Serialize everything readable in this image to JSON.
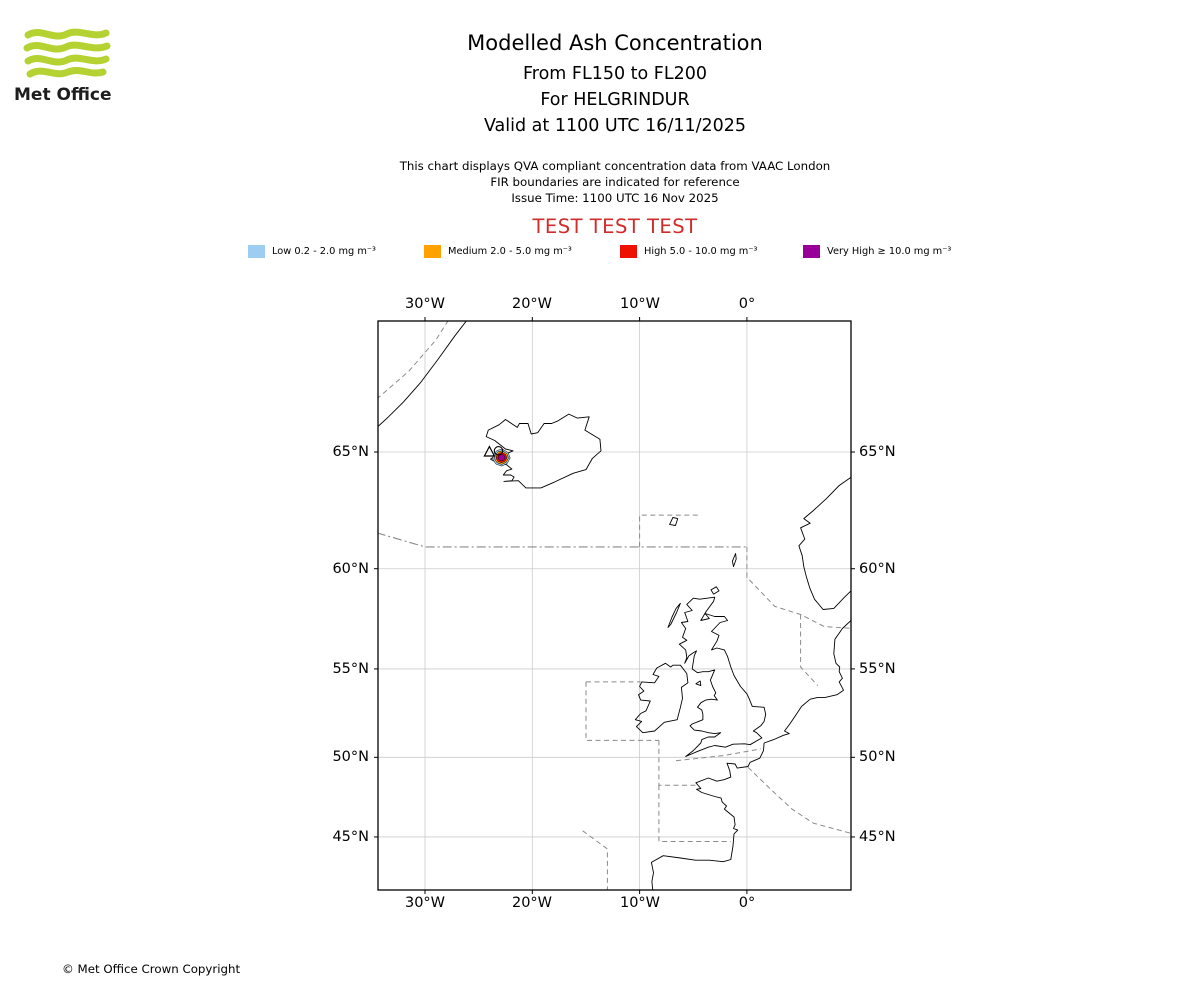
{
  "logo": {
    "name": "Met Office",
    "wave_color": "#b5d233"
  },
  "header": {
    "title": "Modelled Ash Concentration",
    "subtitle_fl": "From FL150 to FL200",
    "subtitle_volcano": "For HELGRINDUR",
    "subtitle_valid": "Valid at 1100 UTC 16/11/2025",
    "note_line1": "This chart displays QVA compliant concentration data from VAAC London",
    "note_line2": "FIR boundaries are indicated for reference",
    "note_line3": "Issue Time: 1100 UTC 16 Nov 2025",
    "test_banner": "TEST TEST TEST",
    "test_color": "#d22b2b"
  },
  "legend": {
    "items": [
      {
        "label": "Low 0.2 - 2.0 mg m⁻³",
        "color": "#9ecdf2"
      },
      {
        "label": "Medium 2.0 - 5.0 mg m⁻³",
        "color": "#ffa200"
      },
      {
        "label": "High 5.0 - 10.0 mg m⁻³",
        "color": "#ee1100"
      },
      {
        "label": "Very High ≥ 10.0 mg m⁻³",
        "color": "#990099"
      }
    ]
  },
  "map": {
    "x_ticks": [
      "30°W",
      "20°W",
      "10°W",
      "0°"
    ],
    "y_ticks": [
      "65°N",
      "60°N",
      "55°N",
      "50°N",
      "45°N"
    ]
  },
  "footer": {
    "copyright": "© Met Office Crown Copyright"
  }
}
